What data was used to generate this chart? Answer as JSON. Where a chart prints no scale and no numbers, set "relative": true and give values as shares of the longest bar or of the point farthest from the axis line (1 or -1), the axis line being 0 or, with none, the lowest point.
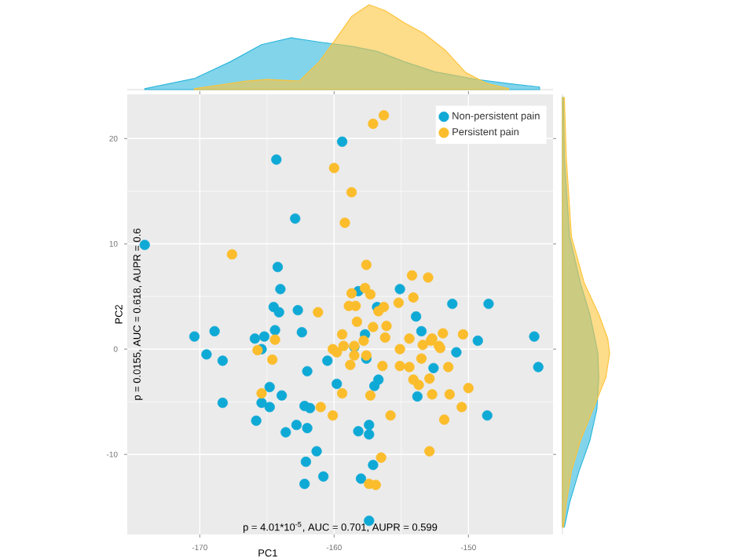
{
  "chart_data": [
    {
      "type": "scatter",
      "xlabel": "PC1",
      "ylabel": "PC2",
      "xlim": [
        -175.4,
        -143.7
      ],
      "ylim": [
        -17.6,
        24.2
      ],
      "xticks": [
        -170,
        -160,
        -150
      ],
      "yticks": [
        -10,
        0,
        10,
        20
      ],
      "grid": true,
      "legend": "top right",
      "annotations": [
        "p = 4.01*10$^{-5}$, AUC = 0.701, AUPR = 0.599",
        "p = 0.0155, AUC = 0.618, AUPR = 0.6"
      ],
      "series": [
        {
          "name": "Non-persistent pain",
          "color": "#0fa9d6",
          "x": [
            -159.4,
            -164.3,
            -162.9,
            -164.2,
            -164.0,
            -164.5,
            -164.1,
            -162.7,
            -164.4,
            -162.4,
            -170.4,
            -168.9,
            -165.9,
            -165.2,
            -169.5,
            -168.3,
            -165.4,
            -162.0,
            -164.8,
            -163.9,
            -165.4,
            -164.8,
            -168.3,
            -165.8,
            -162.2,
            -161.8,
            -159.8,
            -160.5,
            -162.8,
            -163.6,
            -162.0,
            -161.3,
            -162.1,
            -160.8,
            -162.2,
            -158.2,
            -157.4,
            -157.4,
            -158.0,
            -157.1,
            -157.4,
            -158.5,
            -157.6,
            -157.0,
            -156.7,
            -156.8,
            -155.1,
            -153.9,
            -153.5,
            -158.2,
            -152.6,
            -153.8,
            -157.7,
            -151.2,
            -148.5,
            -149.3,
            -150.9,
            -145.1,
            -144.8,
            -148.6,
            -174.1
          ],
          "values": [
            19.7,
            18.0,
            12.4,
            7.8,
            5.7,
            4.0,
            3.5,
            3.7,
            1.8,
            1.6,
            1.2,
            1.7,
            1.0,
            1.2,
            -0.5,
            -1.1,
            0.0,
            -2.1,
            -3.6,
            -4.4,
            -5.1,
            -5.5,
            -5.1,
            -6.8,
            -5.4,
            -5.6,
            -3.3,
            -1.1,
            -7.2,
            -7.9,
            -7.5,
            -9.7,
            -10.7,
            -12.1,
            -12.8,
            -7.8,
            -7.2,
            -8.1,
            -12.3,
            -11.0,
            -16.3,
            0.2,
            -0.9,
            -3.5,
            -2.9,
            4.0,
            5.7,
            3.1,
            1.7,
            5.5,
            -1.8,
            -4.5,
            1.4,
            4.3,
            4.3,
            0.8,
            -0.3,
            1.2,
            -1.7,
            -6.3,
            9.9
          ]
        },
        {
          "name": "Persistent pain",
          "color": "#fbbd2c",
          "x": [
            -157.1,
            -156.3,
            -160.0,
            -158.7,
            -159.2,
            -167.6,
            -157.6,
            -154.2,
            -153.0,
            -158.7,
            -157.7,
            -157.3,
            -158.9,
            -158.4,
            -156.3,
            -156.7,
            -155.2,
            -154.1,
            -161.2,
            -158.3,
            -157.1,
            -156.1,
            -159.4,
            -156.2,
            -154.4,
            -164.4,
            -157.8,
            -160.1,
            -159.3,
            -158.5,
            -165.7,
            -159.8,
            -158.5,
            -157.6,
            -164.6,
            -155.1,
            -153.4,
            -152.8,
            -152.2,
            -158.8,
            -156.4,
            -155.1,
            -154.4,
            -153.5,
            -154.1,
            -153.7,
            -152.9,
            -159.4,
            -157.3,
            -152.7,
            -165.4,
            -161.0,
            -160.1,
            -155.8,
            -156.5,
            -157.4,
            -156.9,
            -152.9,
            -152.7,
            -151.9,
            -150.4,
            -152.1,
            -151.5,
            -151.4,
            -150.0,
            -150.5,
            -151.8
          ],
          "values": [
            21.4,
            22.2,
            17.2,
            14.9,
            12.0,
            9.0,
            8.0,
            7.0,
            6.8,
            5.3,
            5.8,
            5.2,
            4.1,
            4.1,
            4.0,
            3.6,
            4.4,
            4.9,
            3.5,
            2.6,
            2.1,
            2.2,
            1.4,
            1.1,
            1.0,
            0.9,
            0.8,
            0.0,
            0.3,
            0.3,
            -0.1,
            -0.3,
            -0.6,
            -0.6,
            -1.0,
            0.0,
            0.4,
            0.8,
            0.3,
            -1.5,
            -1.6,
            -1.6,
            -1.7,
            -0.9,
            -2.9,
            -3.4,
            -2.8,
            -4.2,
            -4.4,
            -4.3,
            -4.2,
            -5.5,
            -6.3,
            -6.3,
            -10.3,
            -12.8,
            -12.9,
            -9.7,
            1.0,
            1.5,
            1.4,
            0.1,
            -1.7,
            -4.3,
            -3.7,
            -5.5,
            -6.7
          ]
        }
      ]
    },
    {
      "type": "area",
      "relative": true,
      "xlim": [
        -175.4,
        -143.7
      ],
      "xticks": [
        -170,
        -160,
        -150
      ],
      "tick_labels": false,
      "series": [
        {
          "color": "#2fb8dc",
          "x": [
            -174.1,
            -170.4,
            -167.7,
            -165.4,
            -163.2,
            -161.1,
            -158.7,
            -156.8,
            -154.8,
            -152.5,
            -149.4,
            -147.0,
            -144.7
          ],
          "values": [
            0.01,
            0.13,
            0.33,
            0.53,
            0.61,
            0.56,
            0.51,
            0.45,
            0.33,
            0.21,
            0.12,
            0.07,
            0.03
          ]
        },
        {
          "color": "#fcc43c",
          "x": [
            -170.4,
            -166.5,
            -165.0,
            -162.6,
            -161.1,
            -159.9,
            -158.7,
            -157.4,
            -156.2,
            -154.8,
            -153.3,
            -151.7,
            -150.2,
            -148.6,
            -147.0
          ],
          "values": [
            0.01,
            0.1,
            0.12,
            0.1,
            0.33,
            0.59,
            0.86,
            1.0,
            0.93,
            0.79,
            0.66,
            0.46,
            0.2,
            0.07,
            0.01
          ]
        }
      ]
    },
    {
      "type": "area",
      "relative": true,
      "orientation": "horizontal",
      "ylim": [
        -17.6,
        24.2
      ],
      "yticks": [
        -10,
        0,
        10,
        20
      ],
      "tick_labels": false,
      "series": [
        {
          "color": "#2fb8dc",
          "x": [
            23.9,
            18.2,
            10.7,
            6.3,
            3.3,
            1.0,
            -0.4,
            -2.7,
            -5.7,
            -8.7,
            -11.6,
            -14.6,
            -16.9
          ],
          "values": [
            0.02,
            0.04,
            0.15,
            0.38,
            0.58,
            0.69,
            0.75,
            0.77,
            0.73,
            0.58,
            0.35,
            0.15,
            0.04
          ]
        },
        {
          "color": "#fcc43c",
          "x": [
            23.9,
            18.2,
            10.7,
            6.3,
            3.3,
            1.0,
            -0.4,
            -2.7,
            -5.7,
            -8.7,
            -11.6,
            -14.6,
            -16.9
          ],
          "values": [
            0.04,
            0.08,
            0.19,
            0.46,
            0.77,
            0.96,
            1.0,
            0.92,
            0.65,
            0.38,
            0.19,
            0.08,
            0.02
          ]
        }
      ]
    }
  ]
}
